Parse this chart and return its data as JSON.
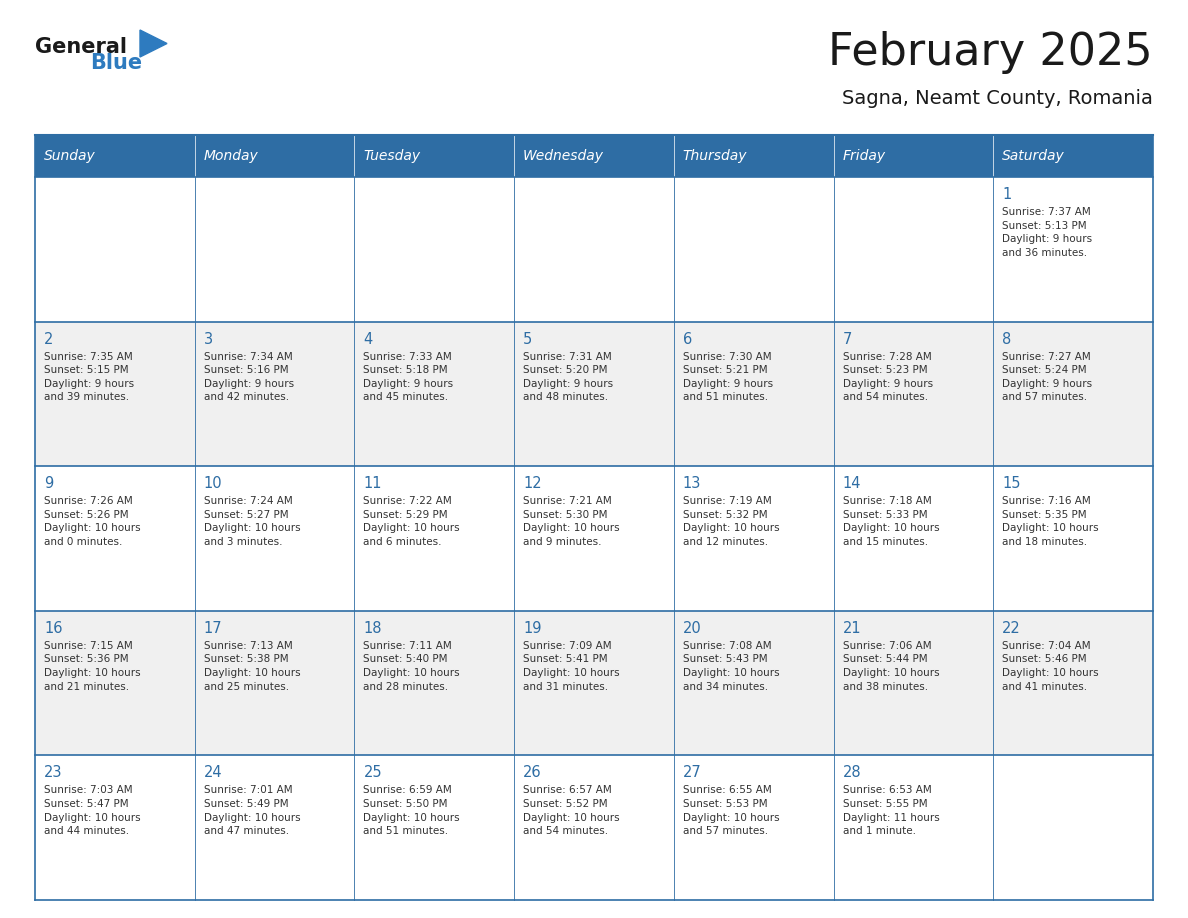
{
  "title": "February 2025",
  "subtitle": "Sagna, Neamt County, Romania",
  "header_bg_color": "#2E6DA4",
  "header_text_color": "#FFFFFF",
  "border_color": "#2E6DA4",
  "day_headers": [
    "Sunday",
    "Monday",
    "Tuesday",
    "Wednesday",
    "Thursday",
    "Friday",
    "Saturday"
  ],
  "title_color": "#1a1a1a",
  "subtitle_color": "#1a1a1a",
  "day_number_color": "#2E6DA4",
  "cell_text_color": "#333333",
  "row_colors": [
    "#FFFFFF",
    "#F0F0F0"
  ],
  "logo_general_color": "#1a1a1a",
  "logo_blue_color": "#2E7BBF",
  "logo_triangle_color": "#2E7BBF",
  "weeks": [
    [
      {
        "day": null,
        "info": ""
      },
      {
        "day": null,
        "info": ""
      },
      {
        "day": null,
        "info": ""
      },
      {
        "day": null,
        "info": ""
      },
      {
        "day": null,
        "info": ""
      },
      {
        "day": null,
        "info": ""
      },
      {
        "day": 1,
        "info": "Sunrise: 7:37 AM\nSunset: 5:13 PM\nDaylight: 9 hours\nand 36 minutes."
      }
    ],
    [
      {
        "day": 2,
        "info": "Sunrise: 7:35 AM\nSunset: 5:15 PM\nDaylight: 9 hours\nand 39 minutes."
      },
      {
        "day": 3,
        "info": "Sunrise: 7:34 AM\nSunset: 5:16 PM\nDaylight: 9 hours\nand 42 minutes."
      },
      {
        "day": 4,
        "info": "Sunrise: 7:33 AM\nSunset: 5:18 PM\nDaylight: 9 hours\nand 45 minutes."
      },
      {
        "day": 5,
        "info": "Sunrise: 7:31 AM\nSunset: 5:20 PM\nDaylight: 9 hours\nand 48 minutes."
      },
      {
        "day": 6,
        "info": "Sunrise: 7:30 AM\nSunset: 5:21 PM\nDaylight: 9 hours\nand 51 minutes."
      },
      {
        "day": 7,
        "info": "Sunrise: 7:28 AM\nSunset: 5:23 PM\nDaylight: 9 hours\nand 54 minutes."
      },
      {
        "day": 8,
        "info": "Sunrise: 7:27 AM\nSunset: 5:24 PM\nDaylight: 9 hours\nand 57 minutes."
      }
    ],
    [
      {
        "day": 9,
        "info": "Sunrise: 7:26 AM\nSunset: 5:26 PM\nDaylight: 10 hours\nand 0 minutes."
      },
      {
        "day": 10,
        "info": "Sunrise: 7:24 AM\nSunset: 5:27 PM\nDaylight: 10 hours\nand 3 minutes."
      },
      {
        "day": 11,
        "info": "Sunrise: 7:22 AM\nSunset: 5:29 PM\nDaylight: 10 hours\nand 6 minutes."
      },
      {
        "day": 12,
        "info": "Sunrise: 7:21 AM\nSunset: 5:30 PM\nDaylight: 10 hours\nand 9 minutes."
      },
      {
        "day": 13,
        "info": "Sunrise: 7:19 AM\nSunset: 5:32 PM\nDaylight: 10 hours\nand 12 minutes."
      },
      {
        "day": 14,
        "info": "Sunrise: 7:18 AM\nSunset: 5:33 PM\nDaylight: 10 hours\nand 15 minutes."
      },
      {
        "day": 15,
        "info": "Sunrise: 7:16 AM\nSunset: 5:35 PM\nDaylight: 10 hours\nand 18 minutes."
      }
    ],
    [
      {
        "day": 16,
        "info": "Sunrise: 7:15 AM\nSunset: 5:36 PM\nDaylight: 10 hours\nand 21 minutes."
      },
      {
        "day": 17,
        "info": "Sunrise: 7:13 AM\nSunset: 5:38 PM\nDaylight: 10 hours\nand 25 minutes."
      },
      {
        "day": 18,
        "info": "Sunrise: 7:11 AM\nSunset: 5:40 PM\nDaylight: 10 hours\nand 28 minutes."
      },
      {
        "day": 19,
        "info": "Sunrise: 7:09 AM\nSunset: 5:41 PM\nDaylight: 10 hours\nand 31 minutes."
      },
      {
        "day": 20,
        "info": "Sunrise: 7:08 AM\nSunset: 5:43 PM\nDaylight: 10 hours\nand 34 minutes."
      },
      {
        "day": 21,
        "info": "Sunrise: 7:06 AM\nSunset: 5:44 PM\nDaylight: 10 hours\nand 38 minutes."
      },
      {
        "day": 22,
        "info": "Sunrise: 7:04 AM\nSunset: 5:46 PM\nDaylight: 10 hours\nand 41 minutes."
      }
    ],
    [
      {
        "day": 23,
        "info": "Sunrise: 7:03 AM\nSunset: 5:47 PM\nDaylight: 10 hours\nand 44 minutes."
      },
      {
        "day": 24,
        "info": "Sunrise: 7:01 AM\nSunset: 5:49 PM\nDaylight: 10 hours\nand 47 minutes."
      },
      {
        "day": 25,
        "info": "Sunrise: 6:59 AM\nSunset: 5:50 PM\nDaylight: 10 hours\nand 51 minutes."
      },
      {
        "day": 26,
        "info": "Sunrise: 6:57 AM\nSunset: 5:52 PM\nDaylight: 10 hours\nand 54 minutes."
      },
      {
        "day": 27,
        "info": "Sunrise: 6:55 AM\nSunset: 5:53 PM\nDaylight: 10 hours\nand 57 minutes."
      },
      {
        "day": 28,
        "info": "Sunrise: 6:53 AM\nSunset: 5:55 PM\nDaylight: 11 hours\nand 1 minute."
      },
      {
        "day": null,
        "info": ""
      }
    ]
  ]
}
